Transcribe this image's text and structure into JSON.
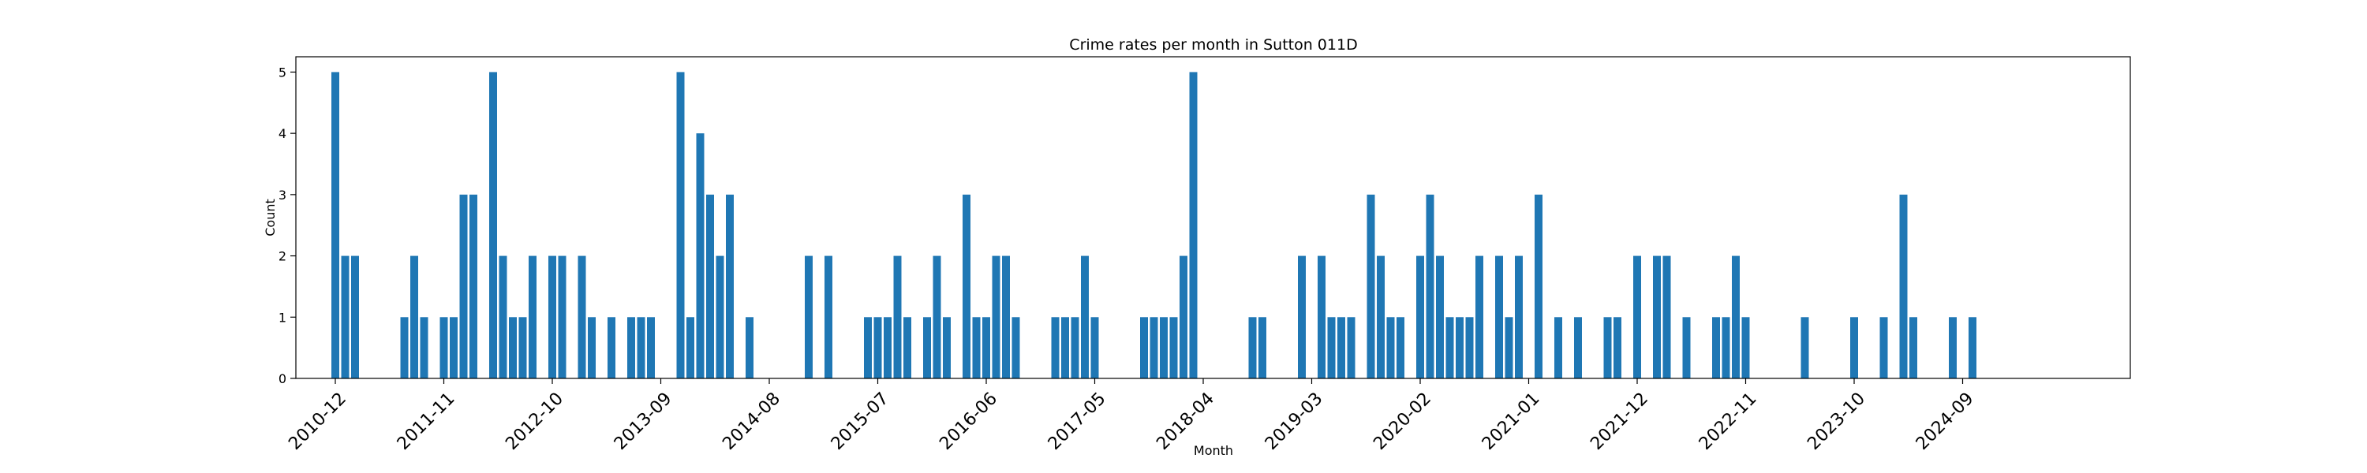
{
  "chart_data": {
    "type": "bar",
    "title": "Crime rates per month in Sutton 011D",
    "xlabel": "Month",
    "ylabel": "Count",
    "ylim": [
      0,
      5.25
    ],
    "xlim": [
      "2010-08",
      "2026-02"
    ],
    "yticks": [
      0,
      1,
      2,
      3,
      4,
      5
    ],
    "xticks": [
      "2010-12",
      "2011-11",
      "2012-10",
      "2013-09",
      "2014-08",
      "2015-07",
      "2016-06",
      "2017-05",
      "2018-04",
      "2019-03",
      "2020-02",
      "2021-01",
      "2021-12",
      "2022-11",
      "2023-10",
      "2024-09"
    ],
    "grid": false,
    "color": "#1f77b4",
    "series": [
      {
        "points": [
          [
            "2010-12",
            5
          ],
          [
            "2011-01",
            2
          ],
          [
            "2011-02",
            2
          ],
          [
            "2011-07",
            1
          ],
          [
            "2011-08",
            2
          ],
          [
            "2011-09",
            1
          ],
          [
            "2011-11",
            1
          ],
          [
            "2011-12",
            1
          ],
          [
            "2012-01",
            3
          ],
          [
            "2012-02",
            3
          ],
          [
            "2012-04",
            5
          ],
          [
            "2012-05",
            2
          ],
          [
            "2012-06",
            1
          ],
          [
            "2012-07",
            1
          ],
          [
            "2012-08",
            2
          ],
          [
            "2012-10",
            2
          ],
          [
            "2012-11",
            2
          ],
          [
            "2013-01",
            2
          ],
          [
            "2013-02",
            1
          ],
          [
            "2013-04",
            1
          ],
          [
            "2013-06",
            1
          ],
          [
            "2013-07",
            1
          ],
          [
            "2013-08",
            1
          ],
          [
            "2013-11",
            5
          ],
          [
            "2013-12",
            1
          ],
          [
            "2014-01",
            4
          ],
          [
            "2014-02",
            3
          ],
          [
            "2014-03",
            2
          ],
          [
            "2014-04",
            3
          ],
          [
            "2014-06",
            1
          ],
          [
            "2014-12",
            2
          ],
          [
            "2015-02",
            2
          ],
          [
            "2015-06",
            1
          ],
          [
            "2015-07",
            1
          ],
          [
            "2015-08",
            1
          ],
          [
            "2015-09",
            2
          ],
          [
            "2015-10",
            1
          ],
          [
            "2015-12",
            1
          ],
          [
            "2016-01",
            2
          ],
          [
            "2016-02",
            1
          ],
          [
            "2016-04",
            3
          ],
          [
            "2016-05",
            1
          ],
          [
            "2016-06",
            1
          ],
          [
            "2016-07",
            2
          ],
          [
            "2016-08",
            2
          ],
          [
            "2016-09",
            1
          ],
          [
            "2017-01",
            1
          ],
          [
            "2017-02",
            1
          ],
          [
            "2017-03",
            1
          ],
          [
            "2017-04",
            2
          ],
          [
            "2017-05",
            1
          ],
          [
            "2017-10",
            1
          ],
          [
            "2017-11",
            1
          ],
          [
            "2017-12",
            1
          ],
          [
            "2018-01",
            1
          ],
          [
            "2018-02",
            2
          ],
          [
            "2018-03",
            5
          ],
          [
            "2018-09",
            1
          ],
          [
            "2018-10",
            1
          ],
          [
            "2019-02",
            2
          ],
          [
            "2019-04",
            2
          ],
          [
            "2019-05",
            1
          ],
          [
            "2019-06",
            1
          ],
          [
            "2019-07",
            1
          ],
          [
            "2019-09",
            3
          ],
          [
            "2019-10",
            2
          ],
          [
            "2019-11",
            1
          ],
          [
            "2019-12",
            1
          ],
          [
            "2020-02",
            2
          ],
          [
            "2020-03",
            3
          ],
          [
            "2020-04",
            2
          ],
          [
            "2020-05",
            1
          ],
          [
            "2020-06",
            1
          ],
          [
            "2020-07",
            1
          ],
          [
            "2020-08",
            2
          ],
          [
            "2020-10",
            2
          ],
          [
            "2020-11",
            1
          ],
          [
            "2020-12",
            2
          ],
          [
            "2021-02",
            3
          ],
          [
            "2021-04",
            1
          ],
          [
            "2021-06",
            1
          ],
          [
            "2021-09",
            1
          ],
          [
            "2021-10",
            1
          ],
          [
            "2021-12",
            2
          ],
          [
            "2022-02",
            2
          ],
          [
            "2022-03",
            2
          ],
          [
            "2022-05",
            1
          ],
          [
            "2022-08",
            1
          ],
          [
            "2022-09",
            1
          ],
          [
            "2022-10",
            2
          ],
          [
            "2022-11",
            1
          ],
          [
            "2023-05",
            1
          ],
          [
            "2023-10",
            1
          ],
          [
            "2024-01",
            1
          ],
          [
            "2024-03",
            3
          ],
          [
            "2024-04",
            1
          ],
          [
            "2024-08",
            1
          ],
          [
            "2024-10",
            1
          ]
        ]
      }
    ]
  }
}
